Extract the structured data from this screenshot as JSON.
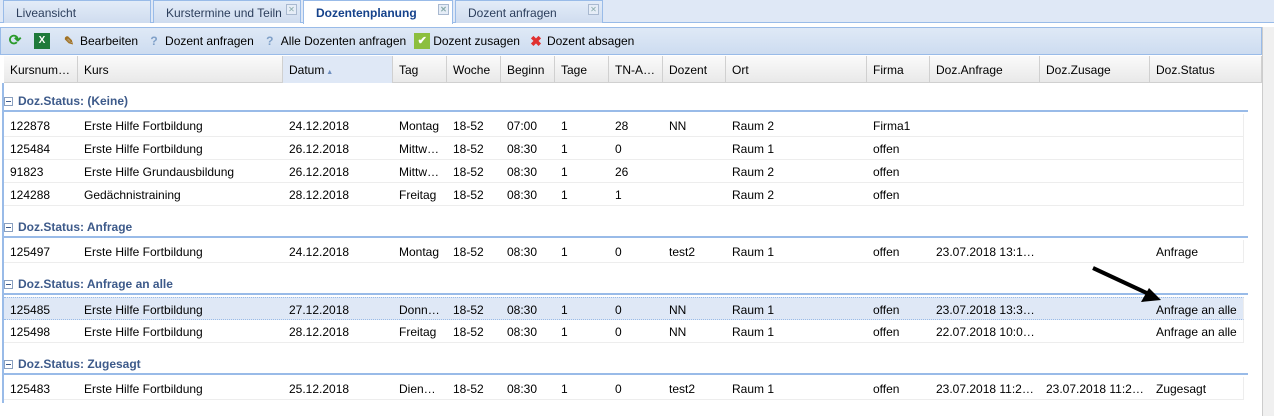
{
  "tabs": [
    {
      "label": "Liveansicht",
      "closable": false,
      "active": false
    },
    {
      "label": "Kurstermine und Teiln",
      "closable": true,
      "active": false
    },
    {
      "label": "Dozentenplanung",
      "closable": true,
      "active": true
    },
    {
      "label": "Dozent anfragen",
      "closable": true,
      "active": false
    }
  ],
  "toolbar": {
    "refresh_icon": "refresh-icon",
    "excel_icon": "excel-icon",
    "edit": "Bearbeiten",
    "ask": "Dozent anfragen",
    "ask_all": "Alle Dozenten anfragen",
    "confirm": "Dozent zusagen",
    "cancel": "Dozent absagen"
  },
  "columns": [
    "Kursnum…",
    "Kurs",
    "Datum",
    "Tag",
    "Woche",
    "Beginn",
    "Tage",
    "TN-A…",
    "Dozent",
    "Ort",
    "Firma",
    "Doz.Anfrage",
    "Doz.Zusage",
    "Doz.Status"
  ],
  "sorted_column": "Datum",
  "sort_direction": "asc",
  "groups": [
    {
      "label": "Doz.Status: (Keine)",
      "rows": [
        [
          "122878",
          "Erste Hilfe Fortbildung",
          "24.12.2018",
          "Montag",
          "18-52",
          "07:00",
          "1",
          "28",
          "NN",
          "Raum 2",
          "Firma1",
          "",
          "",
          ""
        ],
        [
          "125484",
          "Erste Hilfe Fortbildung",
          "26.12.2018",
          "Mittw…",
          "18-52",
          "08:30",
          "1",
          "0",
          "",
          "Raum 1",
          "offen",
          "",
          "",
          ""
        ],
        [
          "91823",
          "Erste Hilfe Grundausbildung",
          "26.12.2018",
          "Mittw…",
          "18-52",
          "08:30",
          "1",
          "26",
          "",
          "Raum 2",
          "offen",
          "",
          "",
          ""
        ],
        [
          "124288",
          "Gedächnistraining",
          "28.12.2018",
          "Freitag",
          "18-52",
          "08:30",
          "1",
          "1",
          "",
          "Raum 2",
          "offen",
          "",
          "",
          ""
        ]
      ]
    },
    {
      "label": "Doz.Status: Anfrage",
      "rows": [
        [
          "125497",
          "Erste Hilfe Fortbildung",
          "24.12.2018",
          "Montag",
          "18-52",
          "08:30",
          "1",
          "0",
          "test2",
          "Raum 1",
          "offen",
          "23.07.2018 13:1…",
          "",
          "Anfrage"
        ]
      ]
    },
    {
      "label": "Doz.Status: Anfrage an alle",
      "rows": [
        [
          "125485",
          "Erste Hilfe Fortbildung",
          "27.12.2018",
          "Donn…",
          "18-52",
          "08:30",
          "1",
          "0",
          "NN",
          "Raum 1",
          "offen",
          "23.07.2018 13:3…",
          "",
          "Anfrage an alle"
        ],
        [
          "125498",
          "Erste Hilfe Fortbildung",
          "28.12.2018",
          "Freitag",
          "18-52",
          "08:30",
          "1",
          "0",
          "NN",
          "Raum 1",
          "offen",
          "22.07.2018 10:0…",
          "",
          "Anfrage an alle"
        ]
      ]
    },
    {
      "label": "Doz.Status: Zugesagt",
      "rows": [
        [
          "125483",
          "Erste Hilfe Fortbildung",
          "25.12.2018",
          "Dien…",
          "18-52",
          "08:30",
          "1",
          "0",
          "test2",
          "Raum 1",
          "offen",
          "23.07.2018 11:2…",
          "23.07.2018 11:2…",
          "Zugesagt"
        ]
      ]
    }
  ],
  "selected_row": "125485"
}
